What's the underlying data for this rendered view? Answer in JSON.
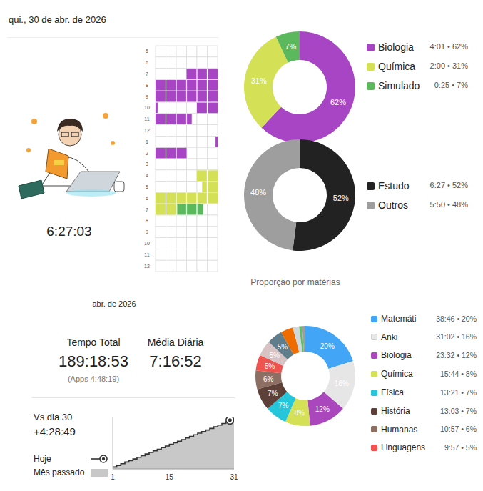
{
  "page": {
    "date": "qui., 30 de abr. de 2026",
    "day_timer": "6:27:03",
    "month": "abr. de 2026",
    "stats": [
      {
        "label": "Tempo Total",
        "value": "189:18:53",
        "note": "(Apps 4:48:19)"
      },
      {
        "label": "Média Diária",
        "value": "7:16:52"
      }
    ],
    "comparison": {
      "label": "Vs dia 30",
      "value": "+4:28:49"
    }
  },
  "chart_data": [
    {
      "type": "timeline",
      "categories": [
        "5",
        "6",
        "7",
        "8",
        "9",
        "10",
        "11",
        "12",
        "1",
        "2",
        "3",
        "4",
        "5",
        "6",
        "7",
        "8",
        "9",
        "10",
        "11",
        "12"
      ],
      "xlim": [
        0,
        60
      ],
      "xticks": [
        0,
        10,
        20,
        30,
        40,
        50,
        60
      ],
      "grid": true,
      "tick_labels": "y",
      "series": [
        {
          "color": "#a845c5",
          "sessions": [
            {
              "row": 2,
              "start": 30,
              "end": 60
            },
            {
              "row": 3,
              "start": 0,
              "end": 60
            },
            {
              "row": 4,
              "start": 0,
              "end": 60
            },
            {
              "row": 5,
              "start": 0,
              "end": 2
            },
            {
              "row": 5,
              "start": 40,
              "end": 60
            },
            {
              "row": 6,
              "start": 0,
              "end": 35
            },
            {
              "row": 8,
              "start": 58,
              "end": 60
            },
            {
              "row": 9,
              "start": 0,
              "end": 30
            }
          ]
        },
        {
          "color": "#d4e157",
          "sessions": [
            {
              "row": 11,
              "start": 40,
              "end": 60
            },
            {
              "row": 12,
              "start": 45,
              "end": 60
            },
            {
              "row": 13,
              "start": 0,
              "end": 60
            },
            {
              "row": 14,
              "start": 0,
              "end": 21
            }
          ]
        },
        {
          "color": "#5cb85c",
          "sessions": [
            {
              "row": 14,
              "start": 21,
              "end": 46
            }
          ]
        }
      ]
    },
    {
      "type": "donut",
      "categories": [
        "Biologia",
        "Química",
        "Simulado"
      ],
      "values": [
        62,
        31,
        7
      ],
      "value_labels": [
        "62%",
        "31%",
        "7%"
      ],
      "legend_texts": [
        "4:01 • 62%",
        "2:00 • 31%",
        "0:25 • 7%"
      ],
      "colors": [
        "#a845c5",
        "#d4e157",
        "#5cb85c"
      ],
      "data_labels": true
    },
    {
      "type": "donut",
      "categories": [
        "Estudo",
        "Outros"
      ],
      "values": [
        52,
        48
      ],
      "value_labels": [
        "52%",
        "48%"
      ],
      "legend_texts": [
        "6:27 • 52%",
        "5:50 • 48%"
      ],
      "colors": [
        "#222222",
        "#9e9e9e"
      ],
      "data_labels": true
    },
    {
      "type": "donut",
      "title": "Proporção por matérias",
      "categories": [
        "Matemáti",
        "Anki",
        "Biologia",
        "Química",
        "Física",
        "História",
        "Humanas",
        "Linguagens",
        null,
        null,
        null,
        null,
        null,
        null
      ],
      "values": [
        20,
        16,
        12,
        8,
        7,
        7,
        6,
        5,
        5,
        5,
        4,
        2,
        1,
        1
      ],
      "value_labels": [
        "20%",
        "16%",
        "12%",
        "8%",
        "7%",
        "7%",
        "6%",
        "5%",
        "5%",
        "5%",
        null,
        null,
        null,
        null
      ],
      "legend_texts": [
        "38:46 • 20%",
        "31:02 • 16%",
        "23:32 • 12%",
        "15:44 • 8%",
        "13:21 • 7%",
        "13:03 • 7%",
        "10:57 • 6%",
        "9:57 • 5%",
        null,
        null,
        null,
        null,
        null,
        null
      ],
      "colors": [
        "#42a5f5",
        "#e6e6e6",
        "#ab47bc",
        "#d4e157",
        "#26c6da",
        "#5d4037",
        "#8d6e63",
        "#ef5350",
        "#d7c3c3",
        "#607d8b",
        "#ef6c00",
        "#cfd8dc",
        "#66bb6a",
        "#9e9e9e"
      ],
      "data_labels": true
    },
    {
      "type": "line",
      "x": [
        1,
        2,
        3,
        4,
        5,
        6,
        7,
        8,
        9,
        10,
        11,
        12,
        13,
        14,
        15,
        16,
        17,
        18,
        19,
        20,
        21,
        22,
        23,
        24,
        25,
        26,
        27,
        28,
        29,
        30,
        31
      ],
      "xlim": [
        1,
        31
      ],
      "xticks": [
        1,
        15,
        31
      ],
      "ylim": [
        0,
        200
      ],
      "tick_labels": "x",
      "series": [
        {
          "name": "Hoje",
          "type": "line",
          "line_style": "step",
          "marker": "end",
          "color": "#333333",
          "values": [
            7.2,
            13.5,
            20.1,
            26.8,
            32.0,
            38.5,
            45.3,
            51.2,
            57.9,
            64.0,
            70.4,
            76.1,
            82.7,
            89.0,
            95.5,
            101.2,
            107.8,
            113.9,
            120.4,
            126.1,
            132.6,
            139.0,
            145.3,
            151.0,
            157.4,
            163.8,
            170.2,
            176.5,
            182.9,
            189.3,
            null
          ]
        },
        {
          "name": "Mês passado",
          "type": "area",
          "color": "#c8c8c8",
          "values": [
            6.5,
            12.8,
            19.0,
            25.1,
            31.4,
            37.2,
            43.5,
            49.6,
            55.9,
            62.0,
            68.1,
            74.2,
            80.3,
            86.5,
            92.4,
            98.6,
            104.7,
            110.8,
            117.0,
            123.1,
            129.3,
            135.4,
            141.6,
            147.7,
            153.9,
            160.0,
            166.2,
            172.3,
            178.5,
            184.8,
            190.9
          ]
        }
      ]
    }
  ]
}
